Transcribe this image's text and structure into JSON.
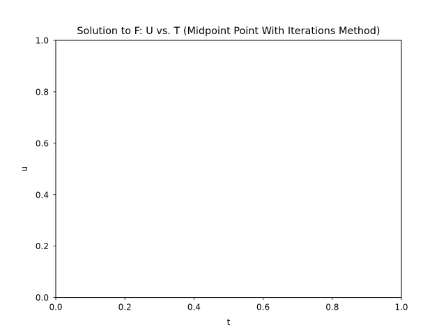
{
  "chart_data": {
    "type": "line",
    "title": "Solution to F: U vs. T (Midpoint Point With Iterations Method)",
    "xlabel": "t",
    "ylabel": "u",
    "xlim": [
      0,
      1
    ],
    "ylim": [
      0,
      1
    ],
    "xticks": [
      "0.0",
      "0.2",
      "0.4",
      "0.6",
      "0.8",
      "1.0"
    ],
    "yticks": [
      "0.0",
      "0.2",
      "0.4",
      "0.6",
      "0.8",
      "1.0"
    ],
    "grid": false,
    "series": []
  }
}
